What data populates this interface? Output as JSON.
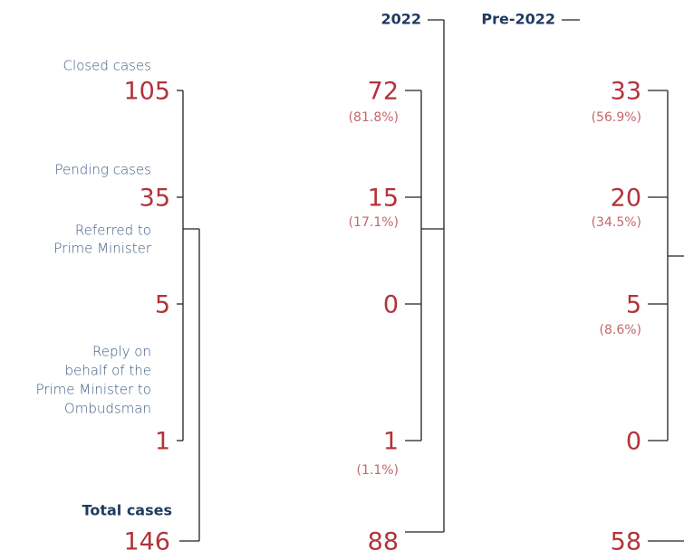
{
  "summary": {
    "items": [
      {
        "label": [
          "Closed cases"
        ],
        "value": 105
      },
      {
        "label": [
          "Pending cases"
        ],
        "value": 35
      },
      {
        "label": [
          "Referred to",
          "Prime Minister"
        ],
        "value": 5
      },
      {
        "label": [
          "Reply on",
          "behalf of the",
          "Prime Minister to",
          "Ombudsman"
        ],
        "value": 1
      }
    ],
    "total": {
      "label": "Total cases",
      "value": 146
    }
  },
  "columns": [
    {
      "header": "2022",
      "items": [
        {
          "value": 72,
          "percent": "(81.8%)"
        },
        {
          "value": 15,
          "percent": "(17.1%)"
        },
        {
          "value": 0
        },
        {
          "value": 1,
          "percent": "(1.1%)"
        }
      ],
      "total": 88
    },
    {
      "header": "Pre-2022",
      "items": [
        {
          "value": 33,
          "percent": "(56.9%)"
        },
        {
          "value": 20,
          "percent": "(34.5%)"
        },
        {
          "value": 5,
          "percent": "(8.6%)"
        },
        {
          "value": 0
        }
      ],
      "total": 58
    }
  ]
}
